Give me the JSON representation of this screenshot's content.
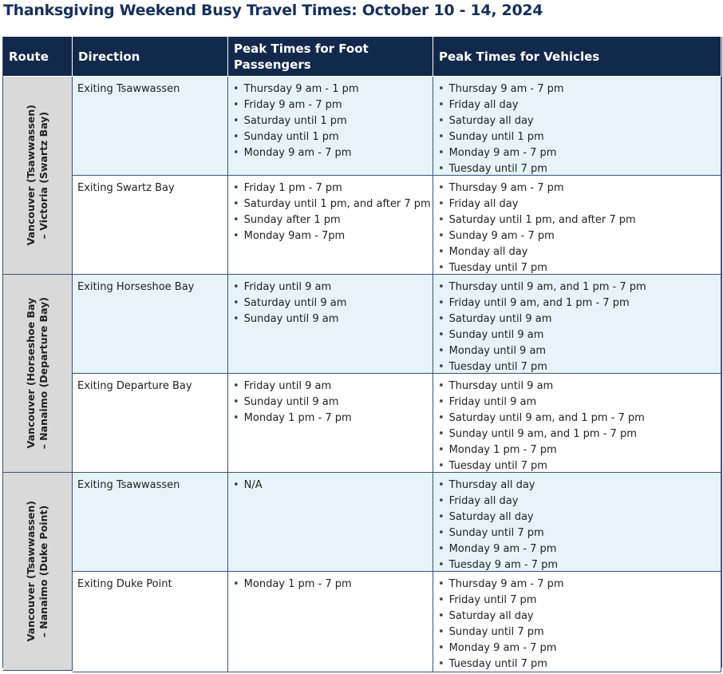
{
  "header": {
    "title": "Thanksgiving Weekend Busy Travel Times: October 10 - 14, 2024"
  },
  "table": {
    "columns": [
      "Route",
      "Direction",
      "Peak Times for Foot Passengers",
      "Peak Times for Vehicles"
    ],
    "routes": [
      {
        "name": [
          "Vancouver (Tsawwassen)",
          "– Victoria (Swartz Bay)"
        ],
        "directions": [
          {
            "direction": "Exiting Tsawwassen",
            "foot": [
              "Thursday 9 am - 1 pm",
              "Friday 9 am - 7 pm",
              "Saturday until 1 pm",
              "Sunday until 1 pm",
              "Monday 9 am - 7 pm"
            ],
            "vehicles": [
              "Thursday 9 am - 7 pm",
              "Friday all day",
              "Saturday all day",
              "Sunday until 1 pm",
              "Monday 9 am - 7 pm",
              "Tuesday until 7 pm"
            ]
          },
          {
            "direction": "Exiting Swartz Bay",
            "foot": [
              "Friday 1 pm - 7 pm",
              "Saturday until 1 pm, and after 7 pm",
              "Sunday after 1 pm",
              "Monday 9am - 7pm"
            ],
            "vehicles": [
              "Thursday 9 am - 7 pm",
              "Friday all day",
              "Saturday until 1 pm, and after 7 pm",
              "Sunday 9 am - 7 pm",
              "Monday all day",
              "Tuesday until 7 pm"
            ]
          }
        ]
      },
      {
        "name": [
          "Vancouver (Horseshoe Bay",
          "– Nanaimo (Departure Bay)"
        ],
        "directions": [
          {
            "direction": "Exiting Horseshoe Bay",
            "foot": [
              "Friday until 9 am",
              "Saturday until 9 am",
              "Sunday until 9 am"
            ],
            "vehicles": [
              "Thursday until 9 am, and 1 pm - 7 pm",
              "Friday until 9 am, and 1 pm - 7 pm",
              "Saturday until 9 am",
              "Sunday until 9 am",
              "Monday until 9 am",
              "Tuesday until 7 pm"
            ]
          },
          {
            "direction": "Exiting Departure Bay",
            "foot": [
              "Friday until 9 am",
              "Sunday until 9 am",
              "Monday 1 pm - 7 pm"
            ],
            "vehicles": [
              "Thursday until 9 am",
              "Friday until 9 am",
              "Saturday until 9 am, and 1 pm - 7 pm",
              "Sunday until 9 am, and 1 pm - 7 pm",
              "Monday 1 pm - 7 pm",
              "Tuesday until 7 pm"
            ]
          }
        ]
      },
      {
        "name": [
          "Vancouver (Tsawwassen)",
          "– Nanaimo (Duke Point)"
        ],
        "directions": [
          {
            "direction": "Exiting Tsawwassen",
            "foot": [
              "N/A"
            ],
            "vehicles": [
              "Thursday all day",
              "Friday all day",
              "Saturday all day",
              "Sunday until 7 pm",
              "Monday 9 am - 7 pm",
              "Tuesday 9 am - 7 pm"
            ]
          },
          {
            "direction": "Exiting Duke Point",
            "foot": [
              "Monday 1 pm - 7 pm"
            ],
            "vehicles": [
              "Thursday 9 am - 7 pm",
              "Friday until 7 pm",
              "Saturday all day",
              "Sunday until 7 pm",
              "Monday 9 am - 7 pm",
              "Tuesday until 7 pm"
            ]
          }
        ]
      }
    ]
  }
}
